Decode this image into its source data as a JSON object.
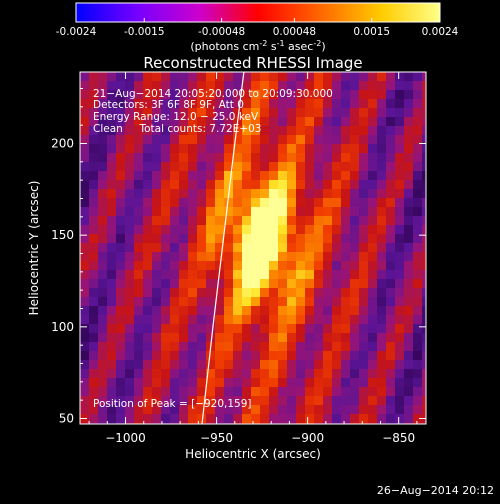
{
  "colorbar": {
    "ticks": [
      "-0.0024",
      "-0.0015",
      "-0.00048",
      "0.00048",
      "0.0015",
      "0.0024"
    ],
    "tick_values": [
      -0.0024,
      -0.0015,
      -0.00048,
      0.00048,
      0.0015,
      0.0024
    ],
    "range": [
      -0.0024,
      0.0024
    ],
    "unit_label": "(photons cm",
    "unit_sup1": "-2",
    "unit_mid": " s",
    "unit_sup2": "-1",
    "unit_end": " asec",
    "unit_sup3": "-2",
    "unit_close": ")",
    "colors": [
      "#0000ff",
      "#7700ff",
      "#dd00dd",
      "#ff0000",
      "#ff7700",
      "#ffdd00",
      "#ffff66"
    ]
  },
  "chart_data": {
    "type": "heatmap",
    "title": "Reconstructed RHESSI Image",
    "xlabel": "Heliocentric X (arcsec)",
    "ylabel": "Heliocentric Y (arcsec)",
    "xlim": [
      -1025,
      -835
    ],
    "ylim": [
      47,
      239
    ],
    "x_ticks": [
      -1000,
      -950,
      -900,
      -850
    ],
    "x_tick_labels": [
      "−1000",
      "−950",
      "−900",
      "−850"
    ],
    "y_ticks": [
      50,
      100,
      150,
      200
    ],
    "y_tick_labels": [
      "50",
      "100",
      "150",
      "200"
    ],
    "peak": [
      -920,
      159
    ],
    "annotations": [
      "21−Aug−2014 20:05:20.000 to 20:09:30.000",
      "Detectors: 3F 6F 8F 9F, Att 0",
      "Energy Range: 12.0 − 25.0 keV",
      "Clean     Total counts: 7.72E+03"
    ],
    "peak_label": "Position of Peak = [−920,159]",
    "limb_curve": [
      [
        -935,
        239
      ],
      [
        -940,
        200
      ],
      [
        -946,
        150
      ],
      [
        -952,
        100
      ],
      [
        -958,
        47
      ]
    ]
  },
  "footer": {
    "date": "26−Aug−2014 20:12"
  }
}
